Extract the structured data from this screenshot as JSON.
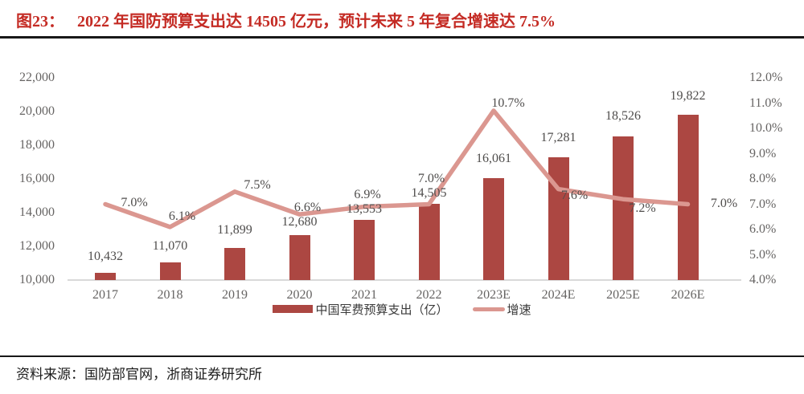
{
  "title": {
    "label": "图23：",
    "text": "2022 年国防预算支出达 14505 亿元，预计未来 5 年复合增速达 7.5%"
  },
  "source": "资料来源：国防部官网，浙商证券研究所",
  "colors": {
    "bar": "#ac4742",
    "line": "#db9790",
    "title_red": "#c42b24",
    "axis_text": "#666463",
    "data_label_text": "#4f4d4c",
    "baseline": "#d9d9d9",
    "rule_black": "#181818"
  },
  "chart_data": {
    "type": "bar+line combo",
    "categories": [
      "2017",
      "2018",
      "2019",
      "2020",
      "2021",
      "2022",
      "2023E",
      "2024E",
      "2025E",
      "2026E"
    ],
    "series": [
      {
        "name": "中国军费预算支出（亿）",
        "type": "bar",
        "axis": "left",
        "values": [
          10432,
          11070,
          11899,
          12680,
          13553,
          14505,
          16061,
          17281,
          18526,
          19822
        ],
        "labels": [
          "10,432",
          "11,070",
          "11,899",
          "12,680",
          "13,553",
          "14,505",
          "16,061",
          "17,281",
          "18,526",
          "19,822"
        ]
      },
      {
        "name": "增速",
        "type": "line",
        "axis": "right",
        "values": [
          7.0,
          6.1,
          7.5,
          6.6,
          6.9,
          7.0,
          10.7,
          7.6,
          7.2,
          7.0
        ],
        "labels": [
          "7.0%",
          "6.1%",
          "7.5%",
          "6.6%",
          "6.9%",
          "7.0%",
          "10.7%",
          "7.6%",
          "7.2%",
          "7.0%"
        ]
      }
    ],
    "y_left": {
      "min": 10000,
      "max": 22000,
      "step": 2000,
      "tick_labels": [
        "10,000",
        "12,000",
        "14,000",
        "16,000",
        "18,000",
        "20,000",
        "22,000"
      ]
    },
    "y_right": {
      "min": 4,
      "max": 12,
      "step": 1,
      "tick_labels": [
        "4.0%",
        "5.0%",
        "6.0%",
        "7.0%",
        "8.0%",
        "9.0%",
        "10.0%",
        "11.0%",
        "12.0%"
      ]
    },
    "grid": false,
    "legend_position": "bottom"
  }
}
